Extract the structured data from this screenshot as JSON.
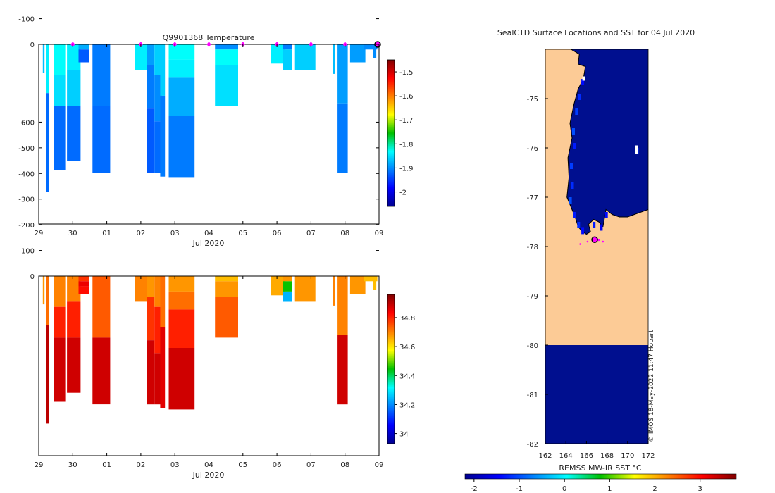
{
  "colors": {
    "land": "#fccb96",
    "water_cold": "#000f8f",
    "marker_magenta": "#ff00ff",
    "axis": "#000000",
    "coastline": "#000000"
  },
  "chart_data": [
    {
      "type": "heatmap",
      "title": "Q9901368  Temperature",
      "xlabel": "Jul 2020",
      "ylabel": "",
      "xticks": [
        "29",
        "30",
        "01",
        "02",
        "03",
        "04",
        "05",
        "06",
        "07",
        "08",
        "09"
      ],
      "xlim_days": [
        0,
        10
      ],
      "yticks": [
        0,
        -100,
        -200,
        -300,
        -400,
        -500,
        -600
      ],
      "ylim": [
        -700,
        0
      ],
      "colorbar": {
        "ticks": [
          "-1.5",
          "-1.6",
          "-1.7",
          "-1.8",
          "-1.9",
          "-2"
        ],
        "tick_values": [
          -1.5,
          -1.6,
          -1.7,
          -1.8,
          -1.9,
          -2.0
        ],
        "range": [
          -2.06,
          -1.45
        ],
        "colormap": "jet"
      },
      "surface_marker_days": [
        1,
        3,
        4,
        5,
        6,
        7,
        8,
        9
      ],
      "last_position_day": 10,
      "profiles": [
        {
          "day": 0.12,
          "width": 0.05,
          "depth": 110,
          "layers": [
            [
              0,
              110,
              -1.87
            ]
          ]
        },
        {
          "day": 0.22,
          "width": 0.08,
          "depth": 575,
          "layers": [
            [
              0,
              190,
              -1.84
            ],
            [
              190,
              575,
              -1.92
            ]
          ]
        },
        {
          "day": 0.45,
          "width": 0.33,
          "depth": 490,
          "layers": [
            [
              0,
              120,
              -1.83
            ],
            [
              120,
              240,
              -1.85
            ],
            [
              240,
              490,
              -1.92
            ]
          ]
        },
        {
          "day": 0.83,
          "width": 0.4,
          "depth": 455,
          "layers": [
            [
              0,
              100,
              -1.84
            ],
            [
              100,
              240,
              -1.86
            ],
            [
              240,
              455,
              -1.92
            ]
          ]
        },
        {
          "day": 1.17,
          "width": 0.32,
          "depth": 70,
          "layers": [
            [
              0,
              20,
              -1.88
            ],
            [
              20,
              70,
              -1.93
            ]
          ]
        },
        {
          "day": 1.58,
          "width": 0.52,
          "depth": 500,
          "layers": [
            [
              0,
              240,
              -1.91
            ],
            [
              240,
              500,
              -1.92
            ]
          ]
        },
        {
          "day": 2.83,
          "width": 0.5,
          "depth": 100,
          "layers": [
            [
              0,
              100,
              -1.84
            ]
          ]
        },
        {
          "day": 3.18,
          "width": 0.22,
          "depth": 500,
          "layers": [
            [
              0,
              80,
              -1.89
            ],
            [
              80,
              250,
              -1.91
            ],
            [
              250,
              500,
              -1.93
            ]
          ]
        },
        {
          "day": 3.4,
          "width": 0.22,
          "depth": 500,
          "layers": [
            [
              0,
              120,
              -1.86
            ],
            [
              120,
              300,
              -1.9
            ],
            [
              300,
              500,
              -1.92
            ]
          ]
        },
        {
          "day": 3.57,
          "width": 0.14,
          "depth": 515,
          "layers": [
            [
              0,
              200,
              -1.86
            ],
            [
              200,
              515,
              -1.91
            ]
          ]
        },
        {
          "day": 3.82,
          "width": 0.76,
          "depth": 520,
          "layers": [
            [
              0,
              60,
              -1.83
            ],
            [
              60,
              130,
              -1.84
            ],
            [
              130,
              280,
              -1.88
            ],
            [
              280,
              520,
              -1.91
            ]
          ]
        },
        {
          "day": 5.18,
          "width": 0.68,
          "depth": 240,
          "layers": [
            [
              0,
              20,
              -1.9
            ],
            [
              20,
              80,
              -1.83
            ],
            [
              80,
              240,
              -1.85
            ]
          ]
        },
        {
          "day": 6.83,
          "width": 0.42,
          "depth": 75,
          "layers": [
            [
              0,
              75,
              -1.84
            ]
          ]
        },
        {
          "day": 7.18,
          "width": 0.26,
          "depth": 100,
          "layers": [
            [
              0,
              20,
              -1.91
            ],
            [
              20,
              100,
              -1.86
            ]
          ]
        },
        {
          "day": 7.53,
          "width": 0.6,
          "depth": 100,
          "layers": [
            [
              0,
              100,
              -1.86
            ]
          ]
        },
        {
          "day": 8.65,
          "width": 0.06,
          "depth": 115,
          "layers": [
            [
              0,
              115,
              -1.87
            ]
          ]
        },
        {
          "day": 8.78,
          "width": 0.3,
          "depth": 500,
          "layers": [
            [
              0,
              230,
              -1.89
            ],
            [
              230,
              500,
              -1.91
            ]
          ]
        },
        {
          "day": 9.15,
          "width": 0.45,
          "depth": 70,
          "layers": [
            [
              0,
              70,
              -1.89
            ]
          ]
        },
        {
          "day": 9.55,
          "width": 0.4,
          "depth": 20,
          "layers": [
            [
              0,
              20,
              -1.9
            ]
          ]
        },
        {
          "day": 9.82,
          "width": 0.1,
          "depth": 55,
          "layers": [
            [
              0,
              55,
              -1.9
            ]
          ]
        }
      ]
    },
    {
      "type": "heatmap",
      "title": "",
      "xlabel": "Jul 2020",
      "ylabel": "",
      "xticks": [
        "29",
        "30",
        "01",
        "02",
        "03",
        "04",
        "05",
        "06",
        "07",
        "08",
        "09"
      ],
      "xlim_days": [
        0,
        10
      ],
      "yticks": [
        0,
        -100,
        -200,
        -300,
        -400,
        -500,
        -600
      ],
      "ylim": [
        -700,
        0
      ],
      "colorbar": {
        "ticks": [
          "34.8",
          "34.6",
          "34.4",
          "34.2",
          "34"
        ],
        "tick_values": [
          34.8,
          34.6,
          34.4,
          34.2,
          34.0
        ],
        "range": [
          33.93,
          34.96
        ],
        "colormap": "jet"
      },
      "profiles": [
        {
          "day": 0.12,
          "width": 0.05,
          "depth": 110,
          "layers": [
            [
              0,
              110,
              34.68
            ]
          ]
        },
        {
          "day": 0.22,
          "width": 0.08,
          "depth": 575,
          "layers": [
            [
              0,
              190,
              34.72
            ],
            [
              190,
              575,
              34.9
            ]
          ]
        },
        {
          "day": 0.45,
          "width": 0.33,
          "depth": 490,
          "layers": [
            [
              0,
              120,
              34.7
            ],
            [
              120,
              240,
              34.8
            ],
            [
              240,
              490,
              34.88
            ]
          ]
        },
        {
          "day": 0.83,
          "width": 0.4,
          "depth": 455,
          "layers": [
            [
              0,
              100,
              34.7
            ],
            [
              100,
              240,
              34.8
            ],
            [
              240,
              455,
              34.88
            ]
          ]
        },
        {
          "day": 1.17,
          "width": 0.32,
          "depth": 70,
          "layers": [
            [
              0,
              20,
              34.78
            ],
            [
              20,
              40,
              34.85
            ],
            [
              40,
              70,
              34.82
            ]
          ]
        },
        {
          "day": 1.58,
          "width": 0.52,
          "depth": 500,
          "layers": [
            [
              0,
              240,
              34.74
            ],
            [
              240,
              500,
              34.88
            ]
          ]
        },
        {
          "day": 2.83,
          "width": 0.5,
          "depth": 100,
          "layers": [
            [
              0,
              100,
              34.7
            ]
          ]
        },
        {
          "day": 3.18,
          "width": 0.22,
          "depth": 500,
          "layers": [
            [
              0,
              80,
              34.68
            ],
            [
              80,
              250,
              34.78
            ],
            [
              250,
              500,
              34.88
            ]
          ]
        },
        {
          "day": 3.4,
          "width": 0.22,
          "depth": 500,
          "layers": [
            [
              0,
              120,
              34.7
            ],
            [
              120,
              300,
              34.8
            ],
            [
              300,
              500,
              34.88
            ]
          ]
        },
        {
          "day": 3.57,
          "width": 0.14,
          "depth": 515,
          "layers": [
            [
              0,
              200,
              34.72
            ],
            [
              200,
              515,
              34.86
            ]
          ]
        },
        {
          "day": 3.82,
          "width": 0.76,
          "depth": 520,
          "layers": [
            [
              0,
              60,
              34.68
            ],
            [
              60,
              130,
              34.72
            ],
            [
              130,
              280,
              34.8
            ],
            [
              280,
              520,
              34.88
            ]
          ]
        },
        {
          "day": 5.18,
          "width": 0.68,
          "depth": 240,
          "layers": [
            [
              0,
              20,
              34.64
            ],
            [
              20,
              80,
              34.68
            ],
            [
              80,
              240,
              34.74
            ]
          ]
        },
        {
          "day": 6.83,
          "width": 0.42,
          "depth": 75,
          "layers": [
            [
              0,
              75,
              34.66
            ]
          ]
        },
        {
          "day": 7.18,
          "width": 0.26,
          "depth": 100,
          "layers": [
            [
              0,
              20,
              34.68
            ],
            [
              20,
              60,
              34.45
            ],
            [
              60,
              100,
              34.24
            ]
          ]
        },
        {
          "day": 7.53,
          "width": 0.6,
          "depth": 100,
          "layers": [
            [
              0,
              100,
              34.68
            ]
          ]
        },
        {
          "day": 8.65,
          "width": 0.06,
          "depth": 115,
          "layers": [
            [
              0,
              115,
              34.7
            ]
          ]
        },
        {
          "day": 8.78,
          "width": 0.3,
          "depth": 500,
          "layers": [
            [
              0,
              230,
              34.7
            ],
            [
              230,
              500,
              34.88
            ]
          ]
        },
        {
          "day": 9.15,
          "width": 0.45,
          "depth": 70,
          "layers": [
            [
              0,
              70,
              34.68
            ]
          ]
        },
        {
          "day": 9.55,
          "width": 0.4,
          "depth": 20,
          "layers": [
            [
              0,
              20,
              34.64
            ]
          ]
        },
        {
          "day": 9.82,
          "width": 0.1,
          "depth": 55,
          "layers": [
            [
              0,
              55,
              34.64
            ]
          ]
        }
      ]
    },
    {
      "type": "heatmap",
      "title": "SealCTD Surface Locations and SST for 04 Jul 2020",
      "xlabel": "",
      "ylabel": "",
      "xticks": [
        "162",
        "164",
        "166",
        "168",
        "170",
        "172"
      ],
      "xtick_values": [
        162,
        164,
        166,
        168,
        170,
        172
      ],
      "xlim": [
        162,
        172
      ],
      "yticks": [
        "-75",
        "-76",
        "-77",
        "-78",
        "-79",
        "-80",
        "-81",
        "-82"
      ],
      "ytick_values": [
        -75,
        -76,
        -77,
        -78,
        -79,
        -80,
        -81,
        -82
      ],
      "ylim": [
        -82,
        -74
      ],
      "sst_in_water_approx": -1.9,
      "ice_shelf_edge_lat": -80,
      "track": [
        [
          165.4,
          -77.95
        ],
        [
          166.1,
          -77.9
        ],
        [
          166.6,
          -77.86
        ],
        [
          167.0,
          -77.85
        ],
        [
          167.2,
          -77.87
        ],
        [
          167.6,
          -77.9
        ]
      ],
      "last_position": [
        166.8,
        -77.86
      ],
      "colorbar": {
        "label": "REMSS MW-IR SST °C",
        "ticks": [
          "-2",
          "-1",
          "0",
          "1",
          "2",
          "3"
        ],
        "tick_values": [
          -2,
          -1,
          0,
          1,
          2,
          3
        ],
        "range": [
          -2.2,
          3.8
        ],
        "colormap": "jet"
      },
      "watermark": "© IMOS 18-May-2022 11:47 Hobart"
    }
  ]
}
